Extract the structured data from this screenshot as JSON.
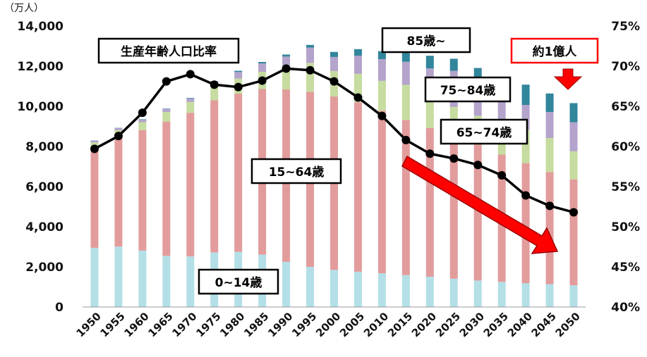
{
  "chart_data": {
    "type": "bar",
    "stacked": true,
    "y_unit": "（万人）",
    "ylim": [
      0,
      14000
    ],
    "y_ticks": [
      "0",
      "2,000",
      "4,000",
      "6,000",
      "8,000",
      "10,000",
      "12,000",
      "14,000"
    ],
    "y2lim": [
      40,
      75
    ],
    "y2_ticks": [
      "40%",
      "45%",
      "50%",
      "55%",
      "60%",
      "65%",
      "70%",
      "75%"
    ],
    "categories": [
      "1950",
      "1955",
      "1960",
      "1965",
      "1970",
      "1975",
      "1980",
      "1985",
      "1990",
      "1995",
      "2000",
      "2005",
      "2010",
      "2015",
      "2020",
      "2025",
      "2030",
      "2035",
      "2040",
      "2045",
      "2050"
    ],
    "series": [
      {
        "key": "age0_14",
        "color": "#b4dfe7",
        "values": [
          2950,
          3010,
          2810,
          2550,
          2520,
          2720,
          2750,
          2610,
          2250,
          2000,
          1850,
          1760,
          1680,
          1590,
          1510,
          1410,
          1320,
          1250,
          1190,
          1140,
          1080
        ]
      },
      {
        "key": "age15_64",
        "color": "#e29c9c",
        "values": [
          4970,
          5470,
          6000,
          6690,
          7160,
          7580,
          7880,
          8250,
          8590,
          8720,
          8640,
          8440,
          8100,
          7730,
          7410,
          7060,
          6770,
          6350,
          5980,
          5580,
          5280
        ]
      },
      {
        "key": "age65_74",
        "color": "#c6dca0",
        "values": [
          280,
          330,
          400,
          480,
          540,
          660,
          750,
          860,
          1080,
          1450,
          1270,
          1420,
          1490,
          1750,
          1740,
          1500,
          1440,
          1500,
          1650,
          1700,
          1400
        ]
      },
      {
        "key": "age75_84",
        "color": "#b4a4cc",
        "values": [
          90,
          110,
          130,
          150,
          170,
          250,
          330,
          420,
          560,
          760,
          700,
          900,
          1080,
          1150,
          1230,
          1800,
          1700,
          1400,
          1250,
          1300,
          1450
        ]
      },
      {
        "key": "age85",
        "color": "#31869b",
        "values": [
          10,
          10,
          20,
          20,
          30,
          40,
          60,
          70,
          100,
          130,
          250,
          330,
          400,
          500,
          630,
          600,
          680,
          800,
          1010,
          920,
          950
        ]
      }
    ],
    "line": {
      "key": "working_age_ratio",
      "color": "#000000",
      "values": [
        59.7,
        61.3,
        64.2,
        68.1,
        69.0,
        67.7,
        67.4,
        68.2,
        69.7,
        69.5,
        68.1,
        66.1,
        63.8,
        60.8,
        59.1,
        58.5,
        57.7,
        56.4,
        53.9,
        52.6,
        51.8
      ]
    },
    "labels": {
      "ratio": "生産年齢人口比率",
      "age85": "85歳~",
      "age75_84": "75~84歳",
      "age65_74": "65~74歳",
      "age15_64": "15~64歳",
      "age0_14": "0~14歳",
      "annotation": "約1億人"
    },
    "accent_color": "#ff0000"
  }
}
